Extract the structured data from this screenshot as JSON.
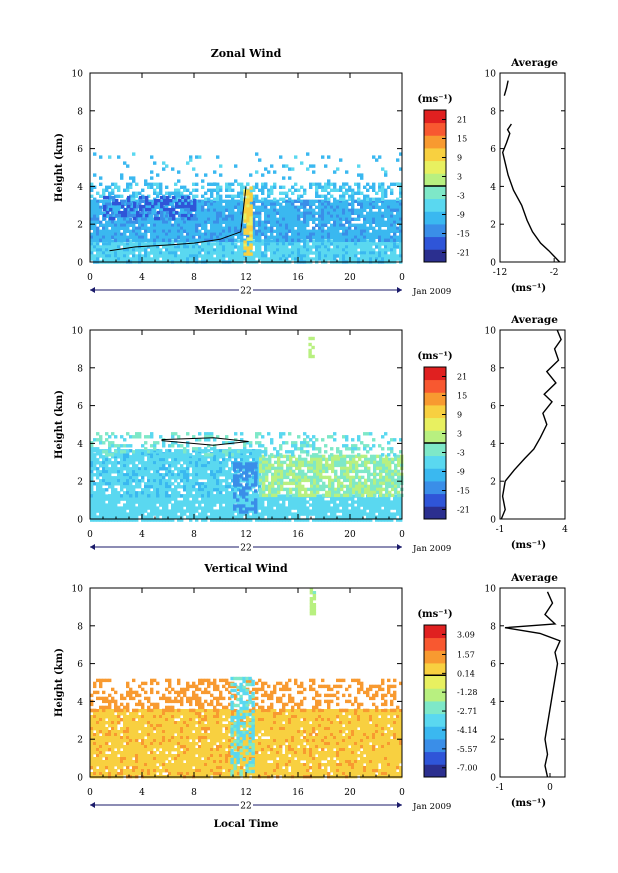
{
  "chart_data": [
    {
      "type": "heatmap",
      "title": "Zonal Wind",
      "xlabel": "",
      "ylabel": "Height (km)",
      "xlim": [
        0,
        24
      ],
      "ylim": [
        0,
        10
      ],
      "xticks": [
        "0",
        "4",
        "8",
        "12",
        "16",
        "20",
        "0"
      ],
      "yticks": [
        "0",
        "2",
        "4",
        "6",
        "8",
        "10"
      ],
      "date_day": "22",
      "date_label": "Jan 2009",
      "colorbar": {
        "unit_label": "(ms⁻¹)",
        "ticks": [
          "21",
          "15",
          "9",
          "3",
          "-3",
          "-9",
          "-15",
          "-21"
        ],
        "range": [
          -24,
          24
        ]
      },
      "fields": [
        {
          "t0": 0,
          "t1": 24,
          "h0": 0.0,
          "h1": 1.2,
          "value": -7,
          "density": 0.92
        },
        {
          "t0": 0,
          "t1": 24,
          "h0": 1.2,
          "h1": 3.3,
          "value": -11,
          "density": 0.88
        },
        {
          "t0": 0,
          "t1": 24,
          "h0": 3.3,
          "h1": 4.2,
          "value": -8,
          "density": 0.45
        },
        {
          "t0": 0,
          "t1": 24,
          "h0": 4.2,
          "h1": 5.8,
          "value": -9,
          "density": 0.08
        },
        {
          "t0": 1,
          "t1": 8,
          "h0": 2.3,
          "h1": 3.5,
          "value": -17,
          "density": 0.5
        },
        {
          "t0": 11.8,
          "t1": 12.4,
          "h0": 0.5,
          "h1": 4.0,
          "value": 9,
          "density": 0.8
        }
      ],
      "contour_zero": [
        {
          "x": 1.5,
          "y": 0.6
        },
        {
          "x": 3.5,
          "y": 0.8
        },
        {
          "x": 6,
          "y": 0.9
        },
        {
          "x": 8,
          "y": 1.0
        },
        {
          "x": 10,
          "y": 1.2
        },
        {
          "x": 11.6,
          "y": 1.6
        },
        {
          "x": 12,
          "y": 4.0
        }
      ],
      "average": {
        "title": "Average",
        "xlabel": "(ms⁻¹)",
        "xlim": [
          -12,
          0
        ],
        "xticks": [
          "-12",
          "-2"
        ],
        "ylim": [
          0,
          10
        ],
        "yticks": [
          "0",
          "2",
          "4",
          "6",
          "8",
          "10"
        ],
        "profile": [
          {
            "x": -1.0,
            "y": 0.0
          },
          {
            "x": -3.0,
            "y": 0.6
          },
          {
            "x": -4.5,
            "y": 1.0
          },
          {
            "x": -6.0,
            "y": 1.6
          },
          {
            "x": -7.0,
            "y": 2.2
          },
          {
            "x": -8.0,
            "y": 3.0
          },
          {
            "x": -9.5,
            "y": 3.8
          },
          {
            "x": -10.5,
            "y": 4.6
          },
          {
            "x": -11.0,
            "y": 5.2
          },
          {
            "x": -11.5,
            "y": 5.8
          },
          {
            "x": -10.8,
            "y": 6.3
          },
          {
            "x": -10.2,
            "y": 6.8
          },
          {
            "x": -10.6,
            "y": 7.0
          },
          {
            "x": -9.9,
            "y": 7.3
          }
        ],
        "profile2": [
          {
            "x": -11.2,
            "y": 8.8
          },
          {
            "x": -10.8,
            "y": 9.2
          },
          {
            "x": -10.5,
            "y": 9.6
          }
        ]
      }
    },
    {
      "type": "heatmap",
      "title": "Meridional Wind",
      "xlabel": "",
      "ylabel": "Height (km)",
      "xlim": [
        0,
        24
      ],
      "ylim": [
        0,
        10
      ],
      "xticks": [
        "0",
        "4",
        "8",
        "12",
        "16",
        "20",
        "0"
      ],
      "yticks": [
        "0",
        "2",
        "4",
        "6",
        "8",
        "10"
      ],
      "date_day": "22",
      "date_label": "Jan 2009",
      "colorbar": {
        "unit_label": "(ms⁻¹)",
        "ticks": [
          "21",
          "15",
          "9",
          "3",
          "-3",
          "-9",
          "-15",
          "-21"
        ],
        "range": [
          -24,
          24
        ]
      },
      "fields": [
        {
          "t0": 0,
          "t1": 24,
          "h0": 0.0,
          "h1": 1.3,
          "value": -6,
          "density": 0.9
        },
        {
          "t0": 0,
          "t1": 13,
          "h0": 1.3,
          "h1": 3.7,
          "value": -7,
          "density": 0.85
        },
        {
          "t0": 13,
          "t1": 24,
          "h0": 1.3,
          "h1": 3.4,
          "value": 0,
          "density": 0.8
        },
        {
          "t0": 0,
          "t1": 24,
          "h0": 3.4,
          "h1": 4.6,
          "value": -4,
          "density": 0.35
        },
        {
          "t0": 11,
          "t1": 12.8,
          "h0": 0.4,
          "h1": 3.0,
          "value": -14,
          "density": 0.6
        },
        {
          "t0": 16.8,
          "t1": 17.2,
          "h0": 8.6,
          "h1": 9.8,
          "value": 2,
          "density": 0.7
        }
      ],
      "contour_zero": [
        {
          "x": 5.5,
          "y": 4.2
        },
        {
          "x": 9.5,
          "y": 4.3
        },
        {
          "x": 12.2,
          "y": 4.1
        },
        {
          "x": 9.5,
          "y": 3.9
        },
        {
          "x": 5.5,
          "y": 4.15
        }
      ],
      "average": {
        "title": "Average",
        "xlabel": "(ms⁻¹)",
        "xlim": [
          -1,
          4
        ],
        "xticks": [
          "-1",
          "4"
        ],
        "ylim": [
          0,
          10
        ],
        "yticks": [
          "0",
          "2",
          "4",
          "6",
          "8",
          "10"
        ],
        "profile": [
          {
            "x": -0.9,
            "y": 0.0
          },
          {
            "x": -0.6,
            "y": 0.5
          },
          {
            "x": -0.8,
            "y": 1.2
          },
          {
            "x": -0.6,
            "y": 2.0
          },
          {
            "x": 0.1,
            "y": 2.6
          },
          {
            "x": 0.9,
            "y": 3.2
          },
          {
            "x": 1.6,
            "y": 3.7
          },
          {
            "x": 2.1,
            "y": 4.3
          },
          {
            "x": 2.6,
            "y": 5.0
          },
          {
            "x": 2.3,
            "y": 5.6
          },
          {
            "x": 3.0,
            "y": 6.2
          },
          {
            "x": 2.4,
            "y": 6.6
          },
          {
            "x": 3.3,
            "y": 7.2
          },
          {
            "x": 2.6,
            "y": 7.8
          },
          {
            "x": 3.5,
            "y": 8.4
          },
          {
            "x": 3.2,
            "y": 9.0
          },
          {
            "x": 3.7,
            "y": 9.5
          },
          {
            "x": 3.4,
            "y": 10.0
          }
        ]
      }
    },
    {
      "type": "heatmap",
      "title": "Vertical Wind",
      "xlabel": "Local Time",
      "ylabel": "Height (km)",
      "xlim": [
        0,
        24
      ],
      "ylim": [
        0,
        10
      ],
      "xticks": [
        "0",
        "4",
        "8",
        "12",
        "16",
        "20",
        "0"
      ],
      "yticks": [
        "0",
        "2",
        "4",
        "6",
        "8",
        "10"
      ],
      "date_day": "22",
      "date_label": "Jan 2009",
      "colorbar": {
        "unit_label": "(ms⁻¹)",
        "ticks": [
          "3.09",
          "1.57",
          "0.14",
          "-1.28",
          "-2.71",
          "-4.14",
          "-5.57",
          "-7.00"
        ],
        "range": [
          -7.7,
          3.8
        ]
      },
      "fields": [
        {
          "t0": 0,
          "t1": 24,
          "h0": 0.0,
          "h1": 3.6,
          "value": 0.6,
          "density": 0.92
        },
        {
          "t0": 0,
          "t1": 24,
          "h0": 3.6,
          "h1": 5.2,
          "value": 1.4,
          "density": 0.35
        },
        {
          "t0": 10.8,
          "t1": 12.6,
          "h0": 0.2,
          "h1": 5.3,
          "value": -3.0,
          "density": 0.55
        },
        {
          "t0": 16.9,
          "t1": 17.2,
          "h0": 8.6,
          "h1": 10.0,
          "value": -1.5,
          "density": 0.7
        }
      ],
      "contour_zero": [],
      "average": {
        "title": "Average",
        "xlabel": "(ms⁻¹)",
        "xlim": [
          -1,
          0.3
        ],
        "xticks": [
          "-1",
          "0"
        ],
        "ylim": [
          0,
          10
        ],
        "yticks": [
          "0",
          "2",
          "4",
          "6",
          "8",
          "10"
        ],
        "profile": [
          {
            "x": -0.05,
            "y": 0.0
          },
          {
            "x": -0.1,
            "y": 0.6
          },
          {
            "x": -0.05,
            "y": 1.2
          },
          {
            "x": -0.1,
            "y": 2.0
          },
          {
            "x": -0.05,
            "y": 2.8
          },
          {
            "x": 0.0,
            "y": 3.6
          },
          {
            "x": 0.05,
            "y": 4.4
          },
          {
            "x": 0.1,
            "y": 5.2
          },
          {
            "x": 0.15,
            "y": 6.0
          },
          {
            "x": 0.1,
            "y": 6.6
          },
          {
            "x": 0.2,
            "y": 7.2
          },
          {
            "x": -0.2,
            "y": 7.6
          },
          {
            "x": -0.9,
            "y": 7.9
          },
          {
            "x": 0.1,
            "y": 8.1
          },
          {
            "x": -0.1,
            "y": 8.6
          },
          {
            "x": 0.05,
            "y": 9.2
          },
          {
            "x": -0.05,
            "y": 9.8
          }
        ]
      }
    }
  ]
}
